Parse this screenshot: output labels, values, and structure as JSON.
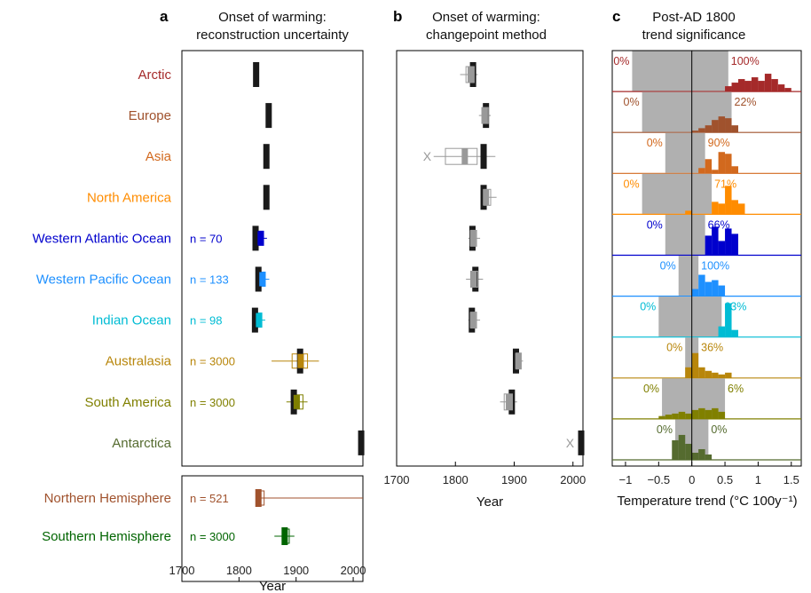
{
  "titles": {
    "a_letter": "a",
    "a_line1": "Onset of warming:",
    "a_line2": "reconstruction uncertainty",
    "b_letter": "b",
    "b_line1": "Onset of warming:",
    "b_line2": "changepoint method",
    "c_letter": "c",
    "c_line1": "Post-AD 1800",
    "c_line2": "trend significance"
  },
  "axes": {
    "a_xlabel": "Year",
    "b_xlabel": "Year",
    "c_xlabel": "Temperature trend (°C 100y⁻¹)",
    "a_xticks": [
      "1700",
      "1800",
      "1900",
      "2000"
    ],
    "b_xticks": [
      "1700",
      "1800",
      "1900",
      "2000"
    ],
    "c_xticks": [
      "−1",
      "−0.5",
      "0",
      "0.5",
      "1",
      "1.5"
    ]
  },
  "chart_data": [
    {
      "panel": "a",
      "type": "box",
      "xlabel": "Year",
      "xlim": [
        1700,
        2017
      ],
      "rows": [
        {
          "label": "Arctic",
          "color": "#a52a2a",
          "onset": 1830
        },
        {
          "label": "Europe",
          "color": "#a0522d",
          "onset": 1852
        },
        {
          "label": "Asia",
          "color": "#d2691e",
          "onset": 1848
        },
        {
          "label": "North America",
          "color": "#ff8c00",
          "onset": 1848
        },
        {
          "label": "Western Atlantic Ocean",
          "color": "#0000cd",
          "onset": 1829,
          "n": "n = 70",
          "box": [
            1833,
            1843
          ],
          "median": 1838,
          "whisker": [
            1830,
            1849
          ]
        },
        {
          "label": "Western Pacific Ocean",
          "color": "#1e90ff",
          "onset": 1834,
          "n": "n = 133",
          "box": [
            1836,
            1846
          ],
          "median": 1841,
          "whisker": [
            1833,
            1853
          ]
        },
        {
          "label": "Indian Ocean",
          "color": "#00bcd4",
          "onset": 1828,
          "n": "n = 98",
          "box": [
            1830,
            1840
          ],
          "median": 1835,
          "whisker": [
            1828,
            1846
          ]
        },
        {
          "label": "Australasia",
          "color": "#b8860b",
          "onset": 1907,
          "n": "n = 3000",
          "box": [
            1893,
            1920
          ],
          "median": 1908,
          "whisker": [
            1857,
            1940
          ]
        },
        {
          "label": "South America",
          "color": "#808000",
          "onset": 1896,
          "n": "n = 3000",
          "box": [
            1896,
            1912
          ],
          "median": 1901,
          "whisker": [
            1883,
            1920
          ]
        },
        {
          "label": "Antarctica",
          "color": "#556b2f",
          "onset": 2014
        }
      ],
      "hemispheres": [
        {
          "label": "Northern Hemisphere",
          "color": "#a0522d",
          "onset": 1834,
          "n": "n = 521",
          "box": [
            1834,
            1844
          ],
          "median": 1836,
          "whisker": [
            1830,
            2017
          ]
        },
        {
          "label": "Southern Hemisphere",
          "color": "#006400",
          "onset": 1880,
          "n": "n = 3000",
          "box": [
            1878,
            1888
          ],
          "median": 1883,
          "whisker": [
            1862,
            1897
          ]
        }
      ]
    },
    {
      "panel": "b",
      "type": "box",
      "xlabel": "Year",
      "xlim": [
        1700,
        2017
      ],
      "rows": [
        {
          "label": "Arctic",
          "onset": 1830,
          "box": [
            1818,
            1832
          ],
          "median": 1826,
          "whisker": [
            1808,
            1838
          ]
        },
        {
          "label": "Europe",
          "onset": 1852,
          "box": [
            1845,
            1856
          ],
          "median": 1850,
          "whisker": [
            1840,
            1860
          ]
        },
        {
          "label": "Asia",
          "onset": 1848,
          "box": [
            1783,
            1837
          ],
          "median": 1816,
          "whisker": [
            1763,
            1868
          ],
          "outlier": 1752
        },
        {
          "label": "North America",
          "onset": 1848,
          "box": [
            1848,
            1860
          ],
          "median": 1852,
          "whisker": [
            1843,
            1870
          ]
        },
        {
          "label": "Western Atlantic Ocean",
          "onset": 1829,
          "box": [
            1826,
            1836
          ],
          "median": 1830,
          "whisker": [
            1822,
            1842
          ]
        },
        {
          "label": "Western Pacific Ocean",
          "onset": 1834,
          "box": [
            1826,
            1838
          ],
          "median": 1831,
          "whisker": [
            1818,
            1847
          ]
        },
        {
          "label": "Indian Ocean",
          "onset": 1828,
          "box": [
            1826,
            1836
          ],
          "median": 1830,
          "whisker": [
            1822,
            1842
          ]
        },
        {
          "label": "Australasia",
          "onset": 1903,
          "box": [
            1903,
            1912
          ],
          "median": 1907,
          "whisker": [
            1898,
            1915
          ]
        },
        {
          "label": "South America",
          "onset": 1896,
          "box": [
            1883,
            1897
          ],
          "median": 1891,
          "whisker": [
            1876,
            1905
          ]
        },
        {
          "label": "Antarctica",
          "onset": 2014,
          "outlier": 1995
        }
      ]
    },
    {
      "panel": "c",
      "type": "histogram",
      "xlabel": "Temperature trend (°C 100y⁻¹)",
      "xlim": [
        -1.2,
        1.65
      ],
      "bin_width": 0.1,
      "rows": [
        {
          "label": "Arctic",
          "color": "#a52a2a",
          "left_pct": "0%",
          "right_pct": "100%",
          "shade": [
            -0.9,
            0.55
          ],
          "bins": [
            [
              0.55,
              0.15
            ],
            [
              0.65,
              0.25
            ],
            [
              0.75,
              0.35
            ],
            [
              0.85,
              0.3
            ],
            [
              0.95,
              0.4
            ],
            [
              1.05,
              0.3
            ],
            [
              1.15,
              0.5
            ],
            [
              1.25,
              0.35
            ],
            [
              1.35,
              0.2
            ],
            [
              1.45,
              0.1
            ]
          ]
        },
        {
          "label": "Europe",
          "color": "#a0522d",
          "left_pct": "0%",
          "right_pct": "22%",
          "shade": [
            -0.75,
            0.6
          ],
          "bins": [
            [
              0.05,
              0.05
            ],
            [
              0.15,
              0.12
            ],
            [
              0.25,
              0.2
            ],
            [
              0.35,
              0.35
            ],
            [
              0.45,
              0.45
            ],
            [
              0.55,
              0.4
            ],
            [
              0.65,
              0.2
            ]
          ]
        },
        {
          "label": "Asia",
          "color": "#d2691e",
          "left_pct": "0%",
          "right_pct": "90%",
          "shade": [
            -0.4,
            0.2
          ],
          "bins": [
            [
              0.15,
              0.15
            ],
            [
              0.25,
              0.4
            ],
            [
              0.35,
              0.1
            ],
            [
              0.45,
              0.6
            ],
            [
              0.55,
              0.55
            ],
            [
              0.65,
              0.2
            ]
          ]
        },
        {
          "label": "North America",
          "color": "#ff8c00",
          "left_pct": "0%",
          "right_pct": "71%",
          "shade": [
            -0.75,
            0.3
          ],
          "bins": [
            [
              -0.05,
              0.1
            ],
            [
              0.35,
              0.35
            ],
            [
              0.45,
              0.3
            ],
            [
              0.55,
              0.8
            ],
            [
              0.65,
              0.4
            ],
            [
              0.75,
              0.3
            ]
          ]
        },
        {
          "label": "Western Atlantic Ocean",
          "color": "#0000cd",
          "left_pct": "0%",
          "right_pct": "66%",
          "shade": [
            -0.4,
            0.2
          ],
          "bins": [
            [
              0.25,
              0.55
            ],
            [
              0.35,
              0.8
            ],
            [
              0.45,
              0.4
            ],
            [
              0.55,
              0.75
            ],
            [
              0.65,
              0.6
            ]
          ]
        },
        {
          "label": "Western Pacific Ocean",
          "color": "#1e90ff",
          "left_pct": "0%",
          "right_pct": "100%",
          "shade": [
            -0.2,
            0.1
          ],
          "bins": [
            [
              0.05,
              0.2
            ],
            [
              0.15,
              0.6
            ],
            [
              0.25,
              0.4
            ],
            [
              0.35,
              0.45
            ],
            [
              0.45,
              0.3
            ]
          ]
        },
        {
          "label": "Indian Ocean",
          "color": "#00bcd4",
          "left_pct": "0%",
          "right_pct": "63%",
          "shade": [
            -0.5,
            0.45
          ],
          "bins": [
            [
              0.45,
              0.3
            ],
            [
              0.55,
              0.95
            ],
            [
              0.65,
              0.2
            ]
          ]
        },
        {
          "label": "Australasia",
          "color": "#b8860b",
          "left_pct": "0%",
          "right_pct": "36%",
          "shade": [
            -0.1,
            0.1
          ],
          "bins": [
            [
              -0.05,
              0.3
            ],
            [
              0.05,
              0.7
            ],
            [
              0.15,
              0.3
            ],
            [
              0.25,
              0.2
            ],
            [
              0.35,
              0.15
            ],
            [
              0.45,
              0.1
            ],
            [
              0.55,
              0.15
            ]
          ]
        },
        {
          "label": "South America",
          "color": "#808000",
          "left_pct": "0%",
          "right_pct": "6%",
          "shade": [
            -0.45,
            0.5
          ],
          "bins": [
            [
              -0.45,
              0.08
            ],
            [
              -0.35,
              0.12
            ],
            [
              -0.25,
              0.15
            ],
            [
              -0.15,
              0.2
            ],
            [
              -0.05,
              0.15
            ],
            [
              0.05,
              0.25
            ],
            [
              0.15,
              0.3
            ],
            [
              0.25,
              0.25
            ],
            [
              0.35,
              0.3
            ],
            [
              0.45,
              0.2
            ]
          ]
        },
        {
          "label": "Antarctica",
          "color": "#556b2f",
          "left_pct": "0%",
          "right_pct": "0%",
          "shade": [
            -0.25,
            0.25
          ],
          "bins": [
            [
              -0.25,
              0.55
            ],
            [
              -0.15,
              0.7
            ],
            [
              -0.05,
              0.45
            ],
            [
              0.05,
              0.2
            ],
            [
              0.15,
              0.3
            ],
            [
              0.25,
              0.15
            ]
          ]
        }
      ]
    }
  ]
}
